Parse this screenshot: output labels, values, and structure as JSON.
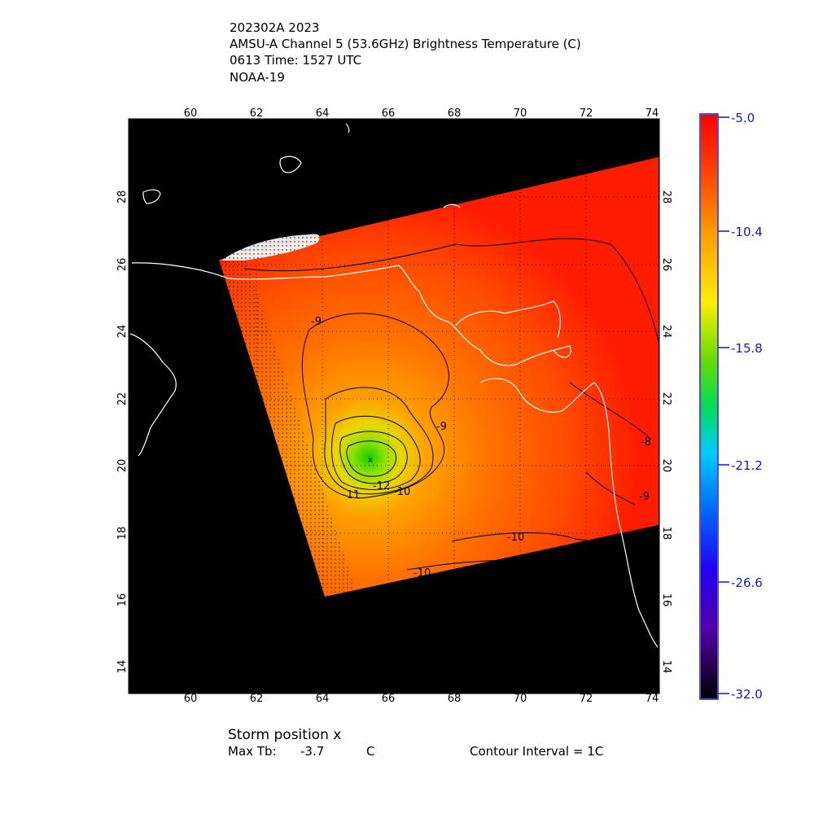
{
  "header": {
    "line1": "202302A 2023",
    "line2": "AMSU-A Channel 5 (53.6GHz) Brightness Temperature (C)",
    "line3": "0613 Time: 1527 UTC",
    "line4": "NOAA-19"
  },
  "map": {
    "lon_ticks": [
      "60",
      "62",
      "64",
      "66",
      "68",
      "70",
      "72",
      "74"
    ],
    "lat_ticks": [
      "14",
      "16",
      "18",
      "20",
      "22",
      "24",
      "26",
      "28"
    ],
    "contour_labels": [
      "-9",
      "-9",
      "-12",
      "-11",
      "-10",
      "-10",
      "-10",
      "-8",
      "-9"
    ],
    "colors": {
      "background": "#000000",
      "coast": "#ffffff",
      "warm": "#ff1a00",
      "mid": "#ff7a00",
      "core": "#22d000"
    }
  },
  "colorbar": {
    "labels": [
      "-5.0",
      "-10.4",
      "-15.8",
      "-21.2",
      "-26.6",
      "-32.0"
    ]
  },
  "footer": {
    "storm_position": "Storm position x",
    "max_tb_label": "Max Tb:",
    "max_tb_value": "-3.7",
    "max_tb_unit": "C",
    "contour_interval": "Contour Interval = 1C"
  }
}
